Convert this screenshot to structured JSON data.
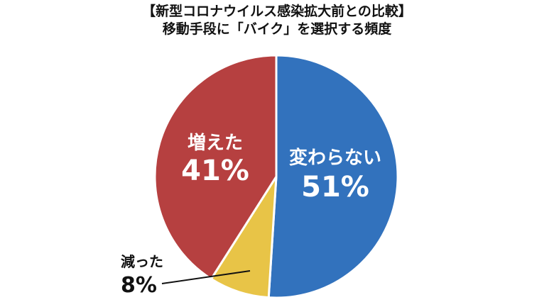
{
  "chart_data": {
    "type": "pie",
    "title": "【新型コロナウイルス感染拡大前との比較】",
    "subtitle": "移動手段に「バイク」を選択する頻度",
    "slices": [
      {
        "label": "変わらない",
        "value": 51,
        "value_label": "51%",
        "color": "#3272bd"
      },
      {
        "label": "減った",
        "value": 8,
        "value_label": "8%",
        "color": "#e8c447"
      },
      {
        "label": "増えた",
        "value": 41,
        "value_label": "41%",
        "color": "#b64040"
      }
    ],
    "start_angle_deg": 0,
    "direction": "clockwise",
    "legend": "none"
  }
}
